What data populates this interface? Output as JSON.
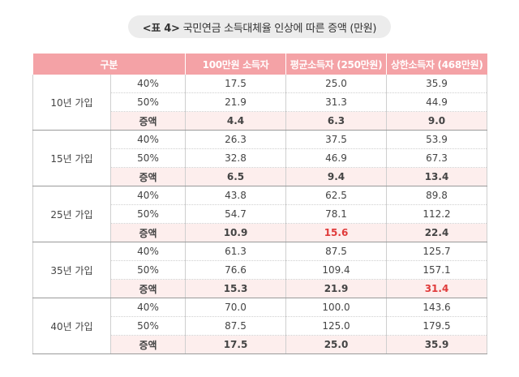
{
  "title": {
    "tag": "<표 4>",
    "text": "국민연금 소득대체율 인상에 따른 증액 (만원)"
  },
  "table": {
    "headers": [
      "구분",
      "100만원 소득자",
      "평균소득자 (250만원)",
      "상한소득자 (468만원)"
    ],
    "groups": [
      {
        "label": "10년 가입",
        "rows": [
          {
            "label": "40%",
            "values": [
              "17.5",
              "25.0",
              "35.9"
            ]
          },
          {
            "label": "50%",
            "values": [
              "21.9",
              "31.3",
              "44.9"
            ]
          },
          {
            "label": "증액",
            "values": [
              "4.4",
              "6.3",
              "9.0"
            ]
          }
        ]
      },
      {
        "label": "15년 가입",
        "rows": [
          {
            "label": "40%",
            "values": [
              "26.3",
              "37.5",
              "53.9"
            ]
          },
          {
            "label": "50%",
            "values": [
              "32.8",
              "46.9",
              "67.3"
            ]
          },
          {
            "label": "증액",
            "values": [
              "6.5",
              "9.4",
              "13.4"
            ]
          }
        ]
      },
      {
        "label": "25년 가입",
        "rows": [
          {
            "label": "40%",
            "values": [
              "43.8",
              "62.5",
              "89.8"
            ]
          },
          {
            "label": "50%",
            "values": [
              "54.7",
              "78.1",
              "112.2"
            ]
          },
          {
            "label": "증액",
            "values": [
              "10.9",
              "15.6",
              "22.4"
            ]
          }
        ]
      },
      {
        "label": "35년 가입",
        "rows": [
          {
            "label": "40%",
            "values": [
              "61.3",
              "87.5",
              "125.7"
            ]
          },
          {
            "label": "50%",
            "values": [
              "76.6",
              "109.4",
              "157.1"
            ]
          },
          {
            "label": "증액",
            "values": [
              "15.3",
              "21.9",
              "31.4"
            ]
          }
        ]
      },
      {
        "label": "40년 가입",
        "rows": [
          {
            "label": "40%",
            "values": [
              "70.0",
              "100.0",
              "143.6"
            ]
          },
          {
            "label": "50%",
            "values": [
              "87.5",
              "125.0",
              "179.5"
            ]
          },
          {
            "label": "증액",
            "values": [
              "17.5",
              "25.0",
              "35.9"
            ]
          }
        ]
      }
    ],
    "highlight_color": "#e03a3a",
    "header_color": "#f4a2a6",
    "increase_row_color": "#fdeeed"
  }
}
